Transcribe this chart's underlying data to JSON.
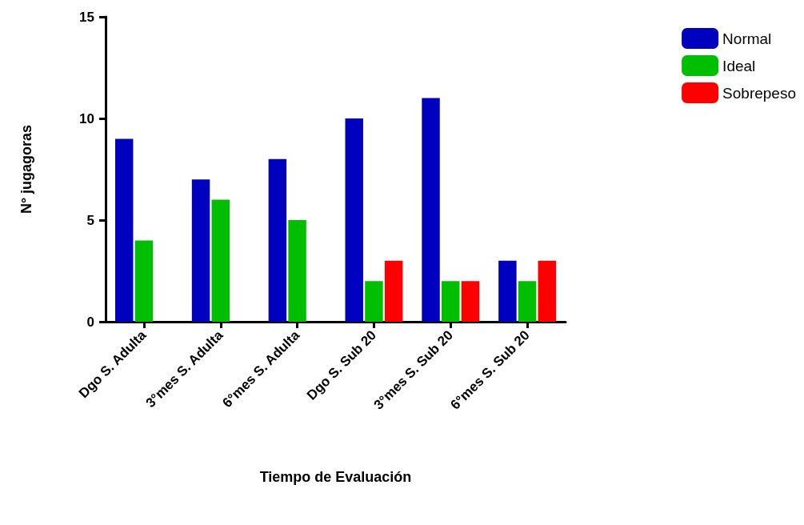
{
  "chart_data": {
    "type": "bar",
    "xlabel": "Tiempo de Evaluación",
    "ylabel": "N° jugagoras",
    "categories": [
      "Dgo S. Adulta",
      "3°mes S. Adulta",
      "6°mes S. Adulta",
      "Dgo S. Sub 20",
      "3°mes S. Sub 20",
      "6°mes S. Sub 20"
    ],
    "series": [
      {
        "name": "Normal",
        "color": "#0000bf",
        "values": [
          9,
          7,
          8,
          10,
          11,
          3
        ]
      },
      {
        "name": "Ideal",
        "color": "#00bf00",
        "values": [
          4,
          6,
          5,
          2,
          2,
          2
        ]
      },
      {
        "name": "Sobrepeso",
        "color": "#ff0000",
        "values": [
          null,
          null,
          null,
          3,
          2,
          3
        ]
      }
    ],
    "ylim": [
      0,
      15
    ],
    "yticks": [
      0,
      5,
      10,
      15
    ],
    "grid": false,
    "legend": "top right"
  }
}
